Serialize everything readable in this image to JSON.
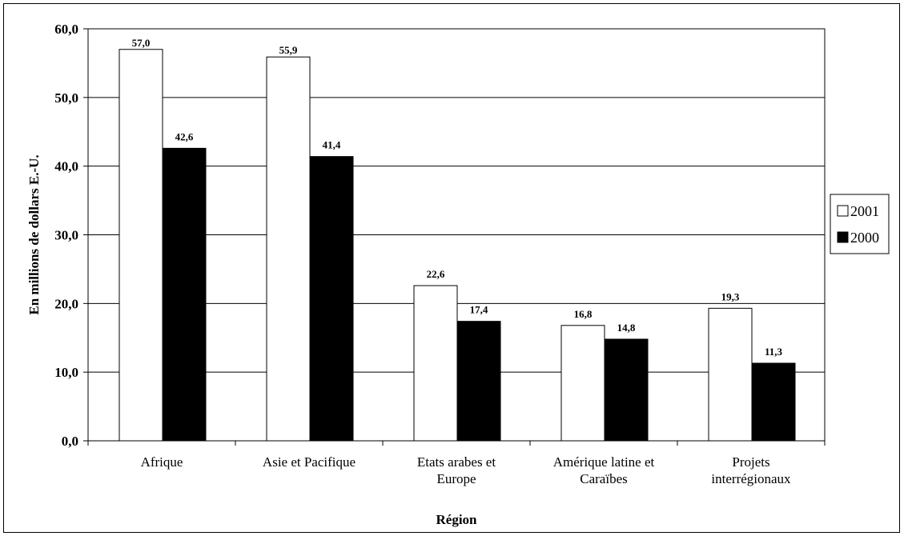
{
  "chart_data": {
    "type": "bar",
    "title": "",
    "xlabel": "Région",
    "ylabel": "En millions de dollars E.-U.",
    "ylim": [
      0,
      60
    ],
    "yticks": [
      0,
      10,
      20,
      30,
      40,
      50,
      60
    ],
    "ytick_labels": [
      "0,0",
      "10,0",
      "20,0",
      "30,0",
      "40,0",
      "50,0",
      "60,0"
    ],
    "grid": true,
    "legend_position": "right",
    "categories": [
      [
        "Afrique"
      ],
      [
        "Asie et Pacifique"
      ],
      [
        "Etats arabes et",
        "Europe"
      ],
      [
        "Amérique latine et",
        "Caraïbes"
      ],
      [
        "Projets",
        "interrégionaux"
      ]
    ],
    "series": [
      {
        "name": "2001",
        "color": "#ffffff",
        "values": [
          57.0,
          55.9,
          22.6,
          16.8,
          19.3
        ],
        "labels": [
          "57,0",
          "55,9",
          "22,6",
          "16,8",
          "19,3"
        ]
      },
      {
        "name": "2000",
        "color": "#000000",
        "values": [
          42.6,
          41.4,
          17.4,
          14.8,
          11.3
        ],
        "labels": [
          "42,6",
          "41,4",
          "17,4",
          "14,8",
          "11,3"
        ]
      }
    ]
  }
}
